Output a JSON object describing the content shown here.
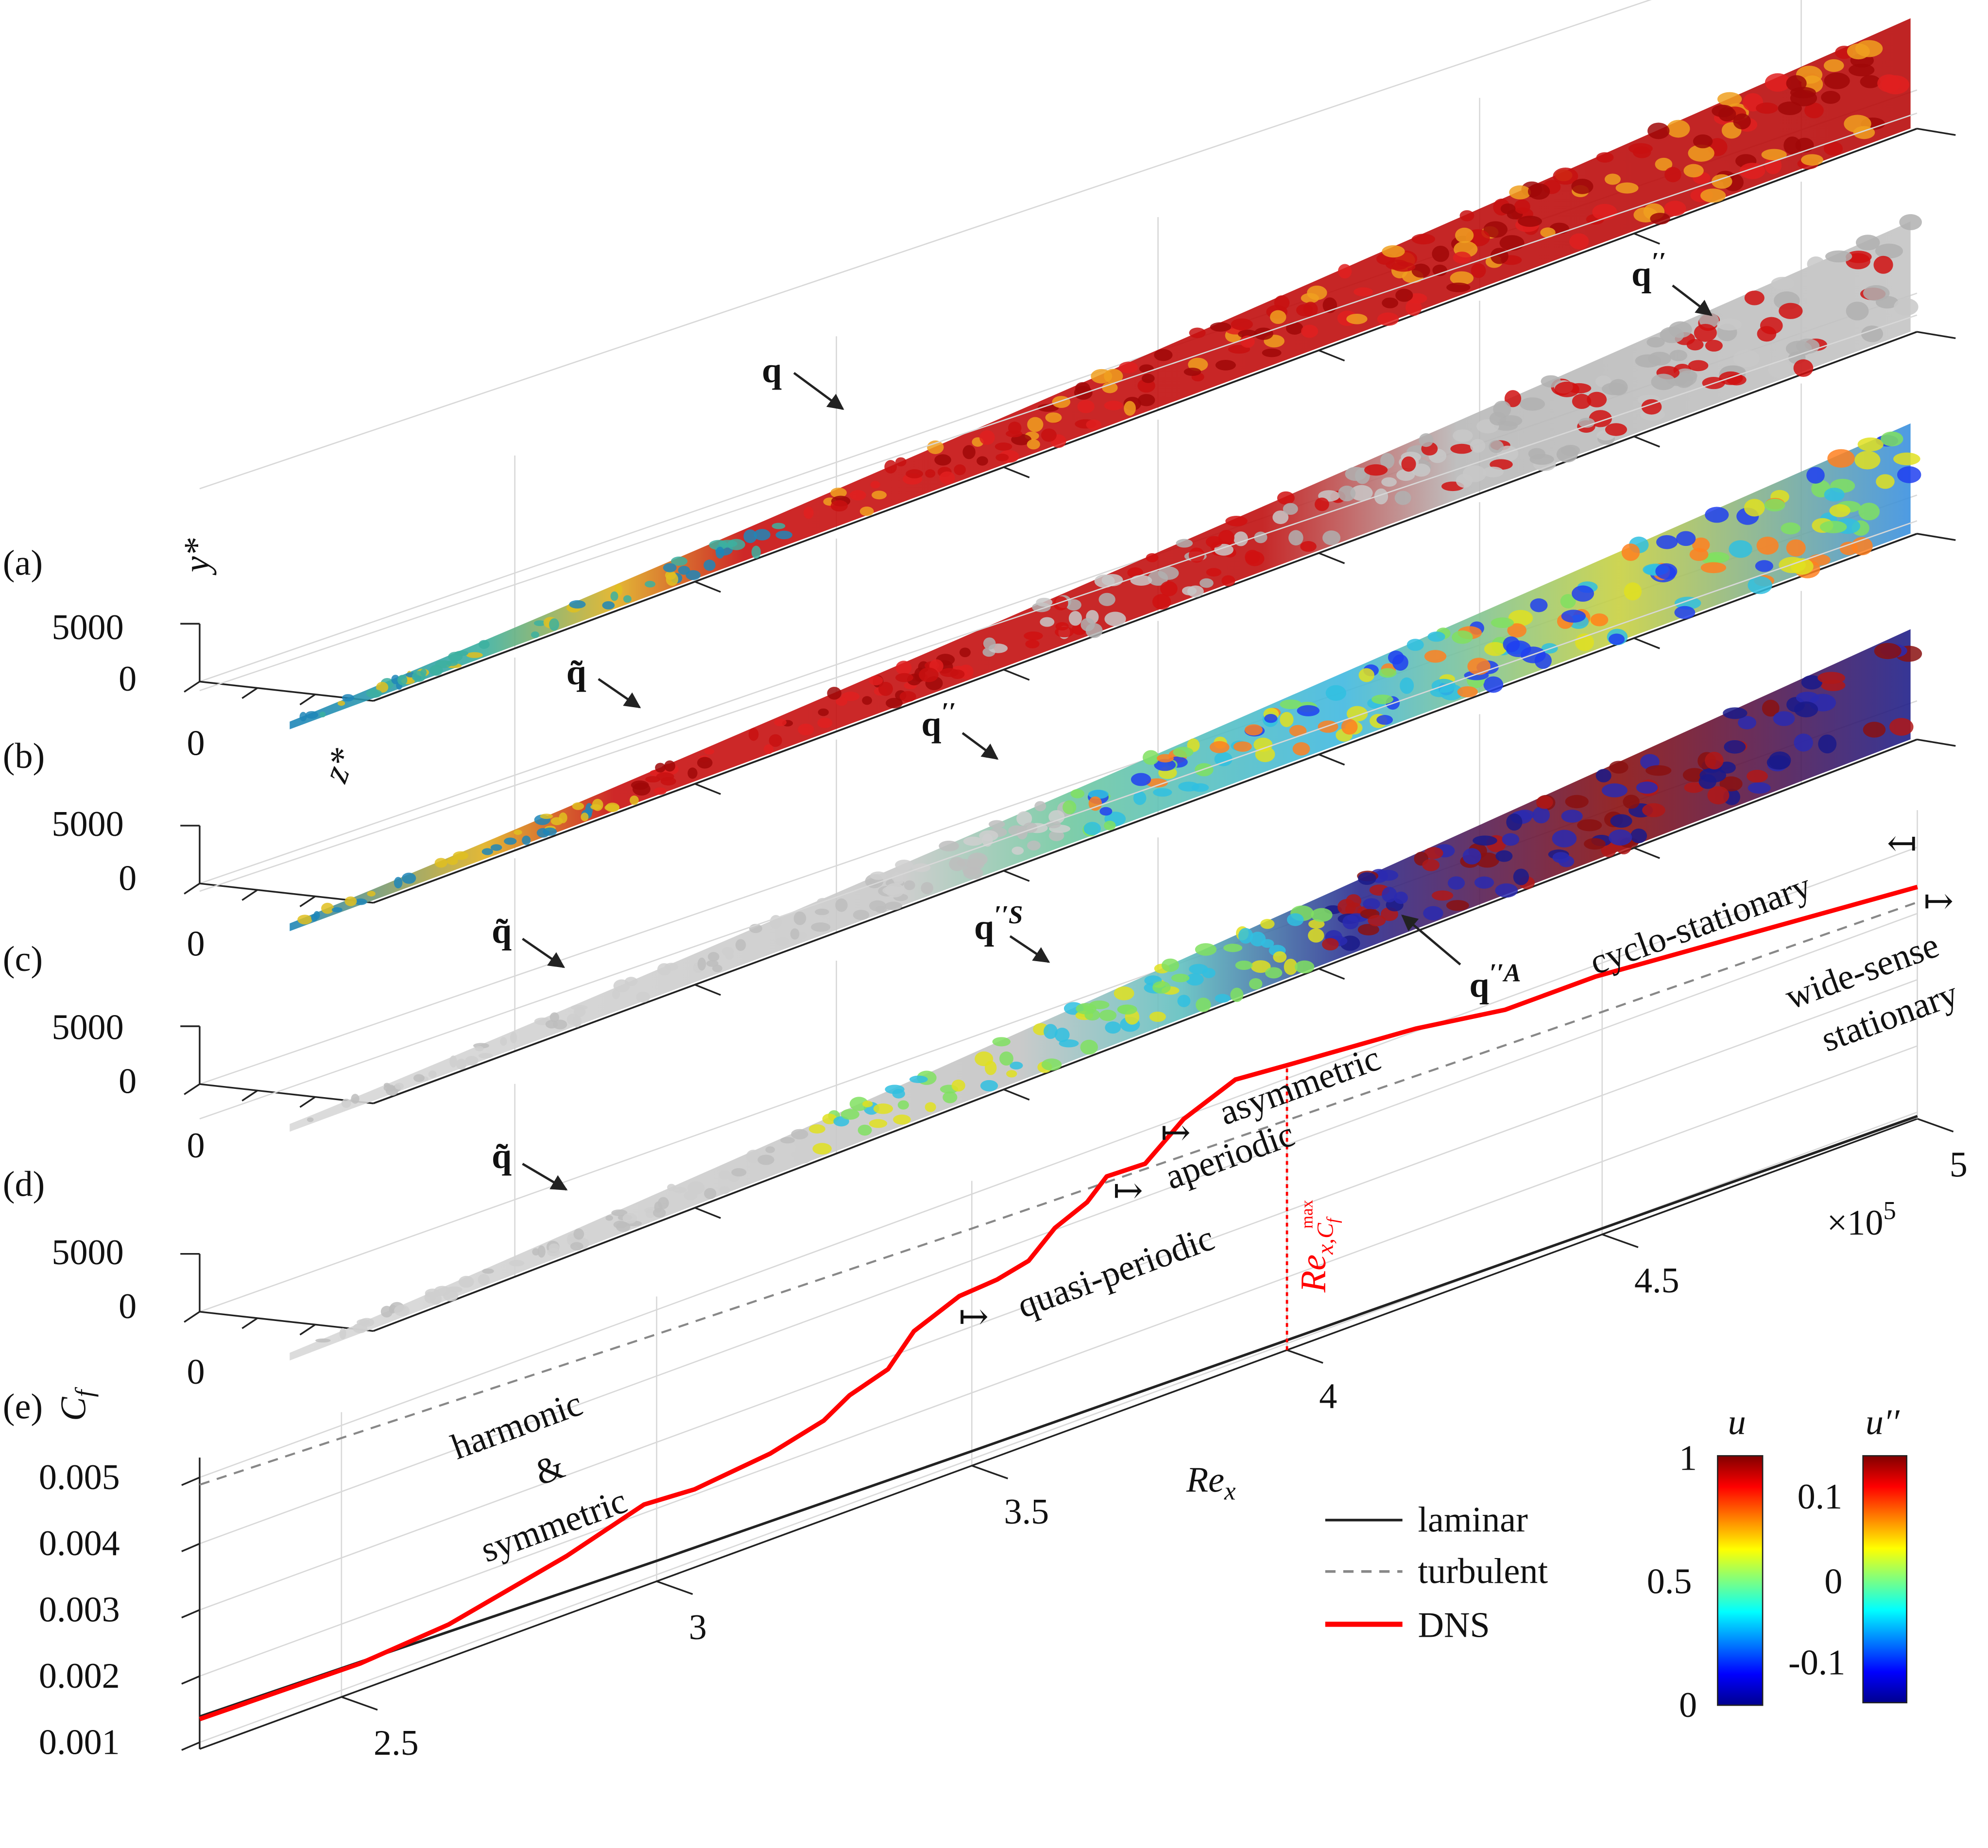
{
  "panels": [
    {
      "label": "(a)",
      "yaxis_label": "y*",
      "zaxis_label": "",
      "yticks": [
        "5000",
        "0"
      ],
      "zticks": [
        "0"
      ]
    },
    {
      "label": "(b)",
      "yaxis_label": "",
      "zaxis_label": "z*",
      "yticks": [
        "5000",
        "0"
      ],
      "zticks": [
        "0"
      ]
    },
    {
      "label": "(c)",
      "yaxis_label": "",
      "zaxis_label": "",
      "yticks": [
        "5000",
        "0"
      ],
      "zticks": [
        "0"
      ]
    },
    {
      "label": "(d)",
      "yaxis_label": "",
      "zaxis_label": "",
      "yticks": [
        "5000",
        "0"
      ],
      "zticks": [
        "0"
      ]
    },
    {
      "label": "(e)"
    }
  ],
  "annotations": {
    "a_q": {
      "base": "q",
      "sup": ""
    },
    "a_q2": {
      "base": "q",
      "sup": "′′"
    },
    "b_qt": {
      "base": "q̃",
      "sup": ""
    },
    "b_q2": {
      "base": "q",
      "sup": "′′"
    },
    "c_qt": {
      "base": "q̃",
      "sup": ""
    },
    "c_qS": {
      "base": "q",
      "sup": "′′S"
    },
    "c_qA": {
      "base": "q",
      "sup": "′′A"
    },
    "d_qt": {
      "base": "q̃",
      "sup": ""
    }
  },
  "regimes": {
    "harmonic": "harmonic",
    "amp": "&",
    "symmetric": "symmetric",
    "quasi_periodic": "quasi-periodic",
    "aperiodic": "aperiodic",
    "asymmetric": "asymmetric",
    "cyclo_stationary": "cyclo-stationary",
    "wide_sense": "wide-sense",
    "stationary": "stationary",
    "marker": "↦"
  },
  "colorbars": [
    {
      "title": "u",
      "ticks": [
        "1",
        "0.5",
        "0"
      ],
      "range": [
        0,
        1
      ],
      "colormap": "jet"
    },
    {
      "title": "u′′",
      "ticks": [
        "0.1",
        "0",
        "-0.1"
      ],
      "range": [
        -0.15,
        0.15
      ],
      "colormap": "jet"
    }
  ],
  "colors": {
    "dns": "#ff0000",
    "laminar": "#222222",
    "turbulent": "#888888",
    "grid": "#d8d8d8"
  },
  "chart_data": {
    "type": "line",
    "title": "",
    "xlabel": "Re_x",
    "xlabel_base": "Re",
    "xlabel_sub": "x",
    "x_multiplier": "×10",
    "x_multiplier_exp": "5",
    "ylabel_base": "C",
    "ylabel_sub": "f",
    "xlim": [
      2.275,
      5.0
    ],
    "ylim": [
      0.0009,
      0.0054
    ],
    "xticks": [
      2.5,
      3,
      3.5,
      4,
      4.5,
      5
    ],
    "xtick_labels": [
      "2.5",
      "3",
      "3.5",
      "4",
      "4.5",
      "5"
    ],
    "yticks": [
      0.001,
      0.002,
      0.003,
      0.004,
      0.005
    ],
    "ytick_labels": [
      "0.001",
      "0.002",
      "0.003",
      "0.004",
      "0.005"
    ],
    "grid": true,
    "legend_position": "bottom-right",
    "series": [
      {
        "name": "laminar",
        "x": [
          2.275,
          3.0,
          3.5,
          4.0,
          4.5,
          5.0
        ],
        "y": [
          0.00139,
          0.00121,
          0.00112,
          0.00105,
          0.00099,
          0.00094
        ]
      },
      {
        "name": "turbulent",
        "x": [
          2.275,
          3.0,
          3.5,
          4.0,
          4.5,
          5.0
        ],
        "y": [
          0.00489,
          0.00463,
          0.00448,
          0.00437,
          0.00426,
          0.00417
        ]
      },
      {
        "name": "DNS",
        "x": [
          2.275,
          2.53,
          2.67,
          2.857,
          2.98,
          3.06,
          3.18,
          3.265,
          3.306,
          3.367,
          3.408,
          3.48,
          3.54,
          3.59,
          3.632,
          3.683,
          3.714,
          3.775,
          3.836,
          3.918,
          4.0,
          4.204,
          4.346,
          4.49,
          5.0
        ],
        "y": [
          0.00135,
          0.0013,
          0.0014,
          0.00178,
          0.00213,
          0.00208,
          0.0022,
          0.0024,
          0.00264,
          0.00282,
          0.00325,
          0.00353,
          0.00357,
          0.00368,
          0.00403,
          0.00424,
          0.00452,
          0.0045,
          0.00496,
          0.00527,
          0.0052,
          0.00504,
          0.00483,
          0.00483,
          0.0044
        ]
      }
    ],
    "vline": {
      "x": 4.0,
      "label_base": "Re",
      "label_sub": "x,C",
      "label_subsub": "f",
      "label_sup": "max"
    }
  }
}
